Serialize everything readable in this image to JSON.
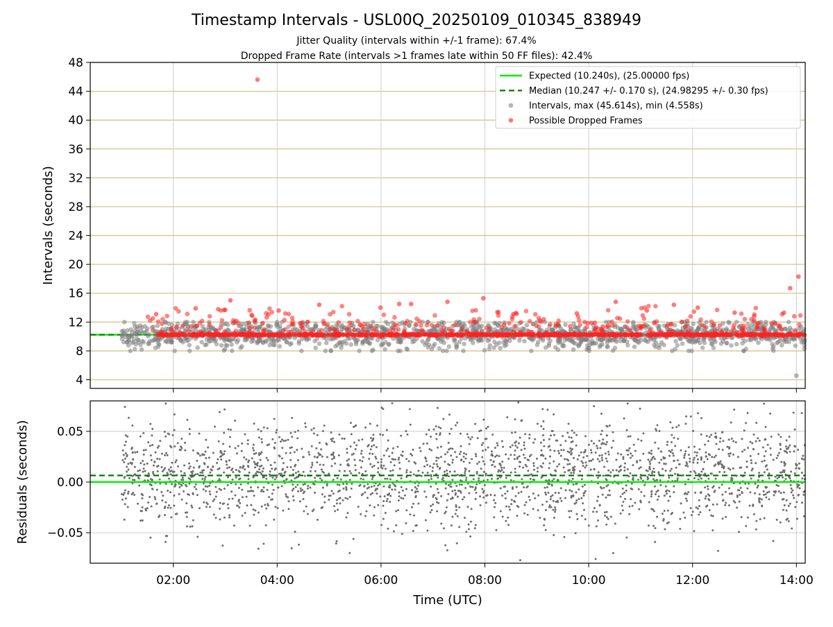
{
  "figure": {
    "title": "Timestamp Intervals - USL00Q_20250109_010345_838949",
    "subtitle1": "Jitter Quality (intervals within +/-1 frame): 67.4%",
    "subtitle2": "Dropped Frame Rate (intervals >1 frames late within 50 FF files): 42.4%"
  },
  "chart_data": [
    {
      "type": "scatter",
      "ylabel": "Intervals (seconds)",
      "xlim_hours": [
        0.4,
        14.17
      ],
      "ylim": [
        2.8,
        48
      ],
      "y_ticks": [
        4,
        8,
        12,
        16,
        20,
        24,
        28,
        32,
        36,
        40,
        44,
        48
      ],
      "grid": true,
      "legend_position": "top-right",
      "colors": {
        "expected": "#00ee00",
        "median": "#007700",
        "intervals": "#808080",
        "dropped": "#ff2020",
        "hgrid": "#d4c68a",
        "vgrid": "#cccccc"
      },
      "legend": [
        {
          "label": "Expected (10.240s), (25.00000 fps)",
          "kind": "line-solid"
        },
        {
          "label": "Median (10.247 +/- 0.170 s), (24.98295 +/- 0.30 fps)",
          "kind": "line-dashed"
        },
        {
          "label": "Intervals, max (45.614s), min (4.558s)",
          "kind": "marker-gray"
        },
        {
          "label": "Possible Dropped Frames",
          "kind": "marker-red"
        }
      ],
      "expected_interval": 10.24,
      "median_interval": 10.247,
      "series": [
        {
          "name": "Intervals, max (45.614s), min (4.558s)",
          "x_range_hours": [
            1.0,
            14.17
          ],
          "typical_range": [
            8.0,
            12.0
          ],
          "extremes": [
            {
              "time_hours": 14.0,
              "value": 4.558
            }
          ]
        },
        {
          "name": "Possible Dropped Frames",
          "baseline_value": 10.24,
          "points": [
            {
              "time_hours": 3.62,
              "value": 45.614
            },
            {
              "time_hours": 14.04,
              "value": 18.3
            },
            {
              "time_hours": 13.88,
              "value": 16.7
            },
            {
              "time_hours": 7.97,
              "value": 15.3
            },
            {
              "time_hours": 3.1,
              "value": 15.0
            },
            {
              "time_hours": 10.52,
              "value": 14.8
            },
            {
              "time_hours": 7.28,
              "value": 14.8
            },
            {
              "time_hours": 4.81,
              "value": 14.4
            },
            {
              "time_hours": 11.64,
              "value": 14.4
            },
            {
              "time_hours": 6.35,
              "value": 14.5
            },
            {
              "time_hours": 6.58,
              "value": 14.5
            },
            {
              "time_hours": 5.99,
              "value": 14.0
            },
            {
              "time_hours": 12.1,
              "value": 14.0
            },
            {
              "time_hours": 2.43,
              "value": 13.9
            },
            {
              "time_hours": 3.0,
              "value": 13.7
            },
            {
              "time_hours": 4.03,
              "value": 13.6
            },
            {
              "time_hours": 11.12,
              "value": 13.6
            },
            {
              "time_hours": 1.67,
              "value": 13.1
            },
            {
              "time_hours": 12.81,
              "value": 13.3
            },
            {
              "time_hours": 13.76,
              "value": 13.3
            },
            {
              "time_hours": 9.77,
              "value": 13.2
            },
            {
              "time_hours": 8.55,
              "value": 13.1
            }
          ]
        }
      ]
    },
    {
      "type": "scatter",
      "xlabel": "Time (UTC)",
      "ylabel": "Residuals (seconds)",
      "xlim_hours": [
        0.4,
        14.17
      ],
      "ylim": [
        -0.08,
        0.08
      ],
      "y_ticks": [
        -0.05,
        0.0,
        0.05
      ],
      "y_tick_labels": [
        "−0.05",
        "0.00",
        "0.05"
      ],
      "x_ticks_hours": [
        2,
        4,
        6,
        8,
        10,
        12,
        14
      ],
      "x_tick_labels": [
        "02:00",
        "04:00",
        "06:00",
        "08:00",
        "10:00",
        "12:00",
        "14:00"
      ],
      "grid": true,
      "expected_residual": 0.0,
      "median_residual": 0.0065,
      "series": [
        {
          "x_range_hours": [
            1.0,
            14.17
          ],
          "typical_range": [
            -0.05,
            0.06
          ],
          "mean_value": 0.007
        }
      ]
    }
  ]
}
